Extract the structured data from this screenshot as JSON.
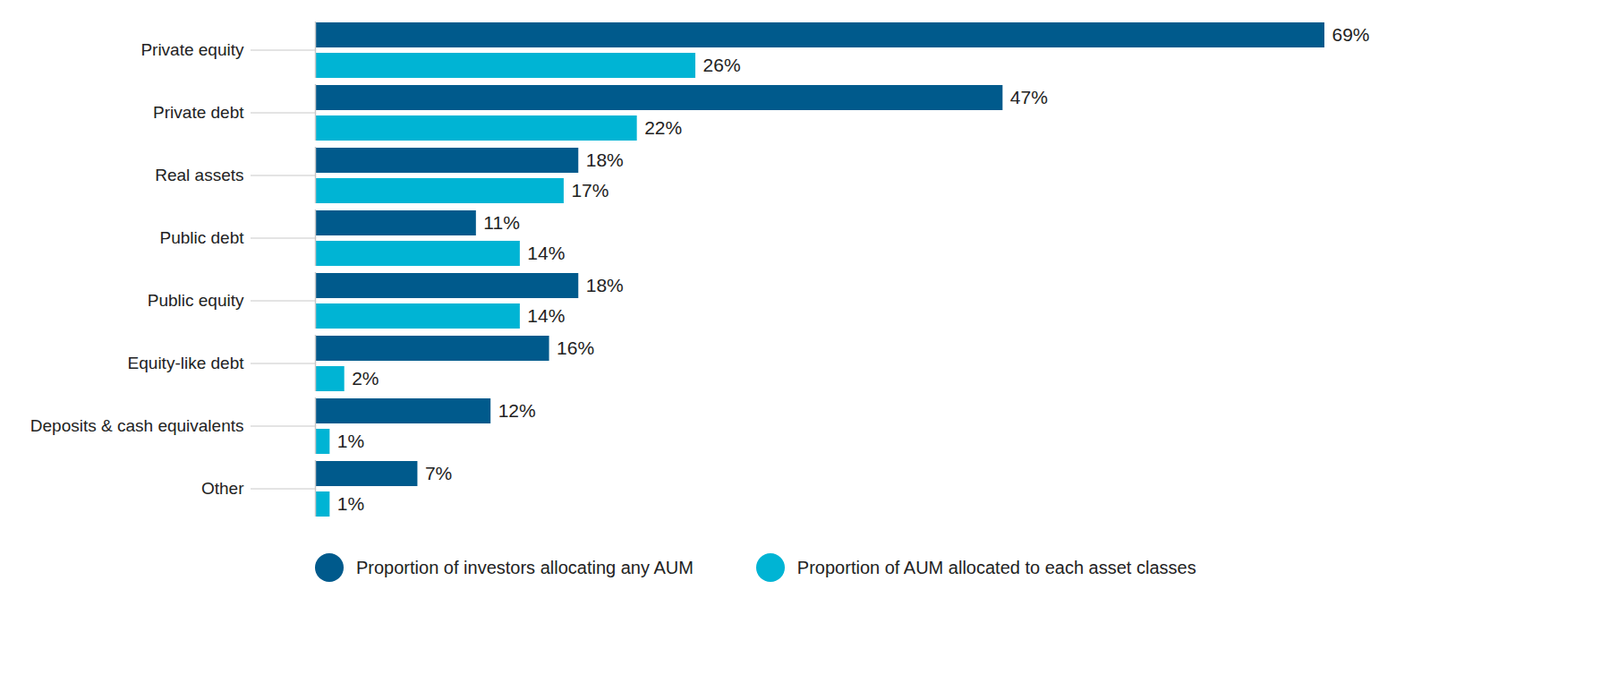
{
  "chart_data": {
    "type": "bar",
    "orientation": "horizontal",
    "categories": [
      "Private equity",
      "Private debt",
      "Real assets",
      "Public debt",
      "Public equity",
      "Equity-like debt",
      "Deposits & cash equivalents",
      "Other"
    ],
    "series": [
      {
        "name": "Proportion of investors allocating any AUM",
        "color": "#005a8c",
        "values": [
          69,
          47,
          18,
          11,
          18,
          16,
          12,
          7
        ],
        "value_labels": [
          "69%",
          "47%",
          "18%",
          "11%",
          "18%",
          "16%",
          "12%",
          "7%"
        ]
      },
      {
        "name": "Proportion of AUM allocated to each asset classes",
        "color": "#00b4d4",
        "values": [
          26,
          22,
          17,
          14,
          14,
          2,
          1,
          1
        ],
        "value_labels": [
          "26%",
          "22%",
          "17%",
          "14%",
          "14%",
          "2%",
          "1%",
          "1%"
        ]
      }
    ],
    "xlim": [
      0,
      69
    ],
    "data_labels": true,
    "tick_labels": "y",
    "legend": "bottom"
  }
}
